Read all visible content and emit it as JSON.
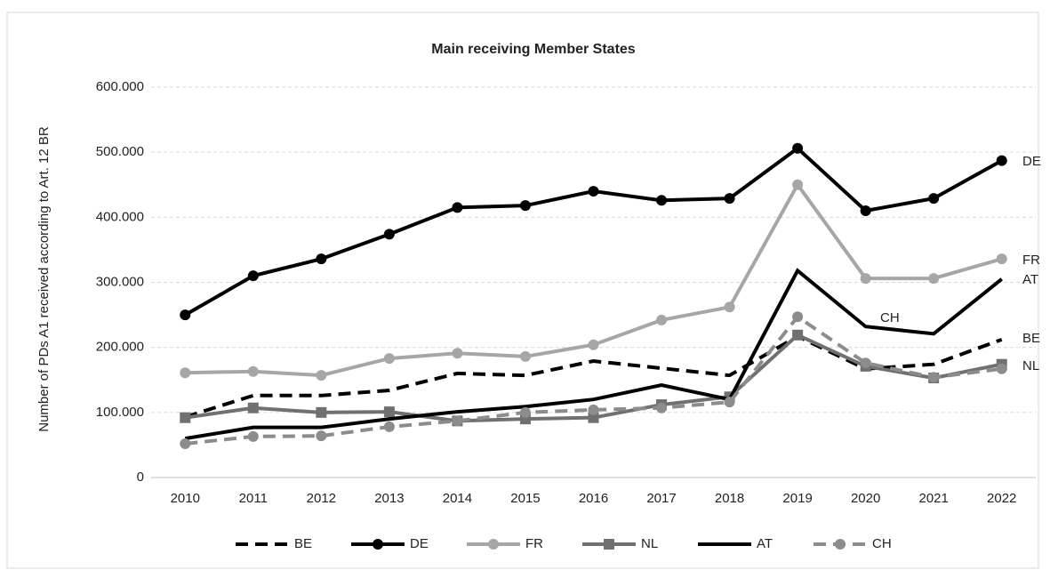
{
  "chart_data": {
    "type": "line",
    "title": "Main receiving Member States",
    "y_label": "Number of PDs A1 received according to Art. 12 BR",
    "x": [
      "2010",
      "2011",
      "2012",
      "2013",
      "2014",
      "2015",
      "2016",
      "2017",
      "2018",
      "2019",
      "2020",
      "2021",
      "2022"
    ],
    "ylim": [
      0,
      600000
    ],
    "yticks": [
      0,
      {
        "value": 100000,
        "label": "100.000"
      },
      {
        "value": 200000,
        "label": "200.000"
      },
      {
        "value": 300000,
        "label": "300.000"
      },
      {
        "value": 400000,
        "label": "400.000"
      },
      {
        "value": 500000,
        "label": "500.000"
      },
      {
        "value": 600000,
        "label": "600.000"
      }
    ],
    "grid": true,
    "legend": "bottom",
    "series": [
      {
        "name": "BE",
        "color": "#000000",
        "dash": true,
        "values": [
          93000,
          126000,
          126000,
          134000,
          160000,
          157000,
          179000,
          168000,
          157000,
          217000,
          167000,
          174000,
          212000
        ]
      },
      {
        "name": "DE",
        "color": "#000000",
        "marker": "circle",
        "values": [
          250000,
          310000,
          336000,
          374000,
          415000,
          418000,
          440000,
          426000,
          429000,
          506000,
          410000,
          429000,
          487000
        ]
      },
      {
        "name": "FR",
        "color": "#a6a6a6",
        "marker": "circle",
        "values": [
          161000,
          163000,
          157000,
          183000,
          191000,
          186000,
          204000,
          242000,
          262000,
          450000,
          306000,
          306000,
          336000
        ]
      },
      {
        "name": "NL",
        "color": "#707070",
        "marker": "square",
        "values": [
          92000,
          107000,
          100000,
          101000,
          87000,
          90000,
          92000,
          112000,
          124000,
          219000,
          171000,
          153000,
          174000
        ]
      },
      {
        "name": "AT",
        "color": "#000000",
        "values": [
          60000,
          77000,
          77000,
          90000,
          101000,
          109000,
          120000,
          142000,
          120000,
          318000,
          232000,
          221000,
          305000
        ]
      },
      {
        "name": "CH",
        "color": "#8c8c8c",
        "dash": true,
        "marker": "circle",
        "values": [
          52000,
          63000,
          64000,
          78000,
          87000,
          100000,
          104000,
          107000,
          116000,
          247000,
          176000,
          154000,
          167000
        ]
      }
    ]
  }
}
